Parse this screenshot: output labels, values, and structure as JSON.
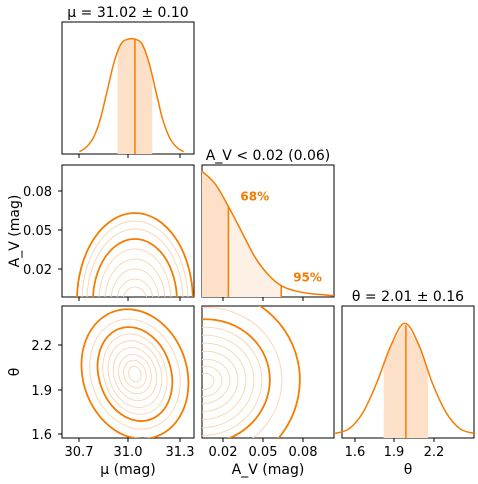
{
  "chart_data": [
    {
      "type": "line",
      "panel": "mu-marginal",
      "title": "μ = 31.02 ± 0.10",
      "x": [
        30.7,
        30.74,
        30.78,
        30.82,
        30.86,
        30.9,
        30.94,
        30.98,
        31.02,
        31.06,
        31.1,
        31.14,
        31.18,
        31.22,
        31.26,
        31.3
      ],
      "y": [
        0.02,
        0.06,
        0.14,
        0.3,
        0.55,
        0.8,
        0.96,
        1.0,
        1.0,
        0.96,
        0.8,
        0.55,
        0.3,
        0.14,
        0.06,
        0.02
      ],
      "median": 31.02,
      "interval_68": [
        30.92,
        31.12
      ],
      "xlim": [
        30.6,
        31.36
      ],
      "ylim": [
        0,
        1.15
      ]
    },
    {
      "type": "line",
      "panel": "av-marginal",
      "title": "A_V < 0.02 (0.06)",
      "x": [
        0.0,
        0.01,
        0.02,
        0.03,
        0.04,
        0.05,
        0.06,
        0.07,
        0.08,
        0.09,
        0.1
      ],
      "y": [
        1.0,
        0.9,
        0.72,
        0.52,
        0.32,
        0.18,
        0.09,
        0.05,
        0.03,
        0.02,
        0.01
      ],
      "limit_68": 0.02,
      "limit_95": 0.06,
      "annotations": [
        "68%",
        "95%"
      ],
      "xlim": [
        0.0,
        0.1
      ],
      "ylim": [
        0,
        1.05
      ]
    },
    {
      "type": "line",
      "panel": "theta-marginal",
      "title": "θ = 2.01 ± 0.16",
      "x": [
        1.5,
        1.6,
        1.7,
        1.8,
        1.9,
        2.0,
        2.1,
        2.2,
        2.3,
        2.4,
        2.5
      ],
      "y": [
        0.04,
        0.08,
        0.22,
        0.48,
        0.8,
        1.0,
        0.82,
        0.48,
        0.22,
        0.08,
        0.04
      ],
      "median": 2.01,
      "interval_68": [
        1.85,
        2.17
      ],
      "xlim": [
        1.55,
        2.5
      ],
      "ylim": [
        0,
        1.15
      ]
    },
    {
      "type": "contour",
      "panel": "mu-av",
      "x_center": 31.02,
      "y_range": [
        0.0,
        0.08
      ],
      "xlim": [
        30.6,
        31.36
      ],
      "ylim": [
        0.0,
        0.1
      ]
    },
    {
      "type": "contour",
      "panel": "mu-theta",
      "x_center": 31.02,
      "y_center": 2.01,
      "xlim": [
        30.6,
        31.36
      ],
      "ylim": [
        1.55,
        2.5
      ]
    },
    {
      "type": "contour",
      "panel": "av-theta",
      "y_center": 2.0,
      "xlim": [
        0.0,
        0.1
      ],
      "ylim": [
        1.55,
        2.5
      ]
    }
  ],
  "axes": {
    "mu_ticks": [
      "30.7",
      "31.0",
      "31.3"
    ],
    "av_x_ticks": [
      "0.02",
      "0.05",
      "0.08"
    ],
    "av_y_ticks": [
      "0.08",
      "0.05",
      "0.02"
    ],
    "theta_y_ticks": [
      "2.2",
      "1.9",
      "1.6"
    ],
    "theta_x_ticks": [
      "1.6",
      "1.9",
      "2.2"
    ],
    "mu_xlabel": "μ (mag)",
    "av_xlabel": "A_V (mag)",
    "av_ylabel": "A_V (mag)",
    "theta_xlabel": "θ",
    "theta_ylabel": "θ"
  },
  "colors": {
    "accent": "#f57c00",
    "fill": "#fde0c8",
    "thin_contour": "#fbd7b8"
  }
}
